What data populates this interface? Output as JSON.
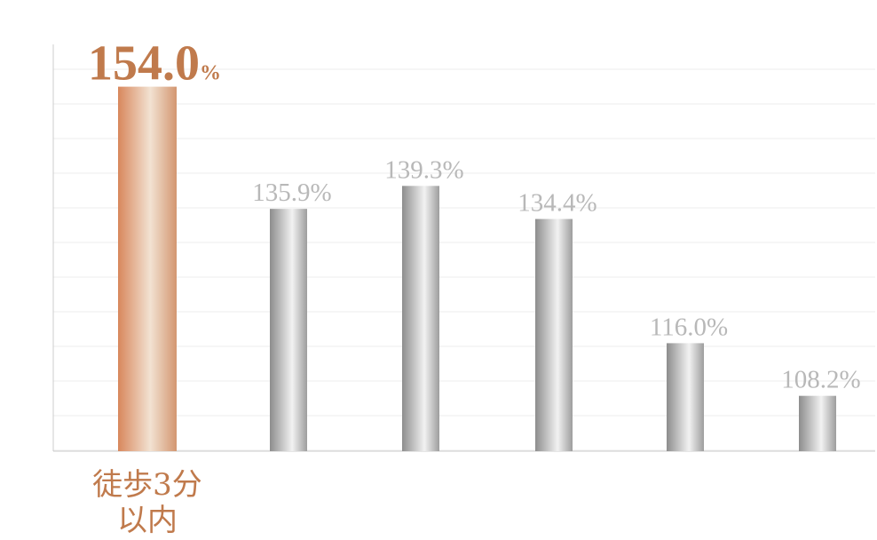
{
  "chart_data": {
    "type": "bar",
    "values": [
      154.0,
      135.9,
      139.3,
      134.4,
      116.0,
      108.2
    ],
    "value_labels": [
      "154.0",
      "135.9%",
      "139.3%",
      "134.4%",
      "116.0%",
      "108.2%"
    ],
    "highlight_unit": "%",
    "categories": [
      "徒歩3分以内",
      "",
      "",
      "",
      "",
      ""
    ],
    "category_label_lines": [
      "徒歩3分",
      "以内"
    ],
    "ylim": [
      100,
      158
    ],
    "grid": true,
    "highlight_index": 0,
    "colors": {
      "highlight": "#c8885a",
      "highlight_text": "#c07a4c",
      "bar_gray": "#a8a8a8",
      "label_gray": "#b8b8b8",
      "grid": "#eeeeee",
      "axis": "#cccccc"
    }
  }
}
